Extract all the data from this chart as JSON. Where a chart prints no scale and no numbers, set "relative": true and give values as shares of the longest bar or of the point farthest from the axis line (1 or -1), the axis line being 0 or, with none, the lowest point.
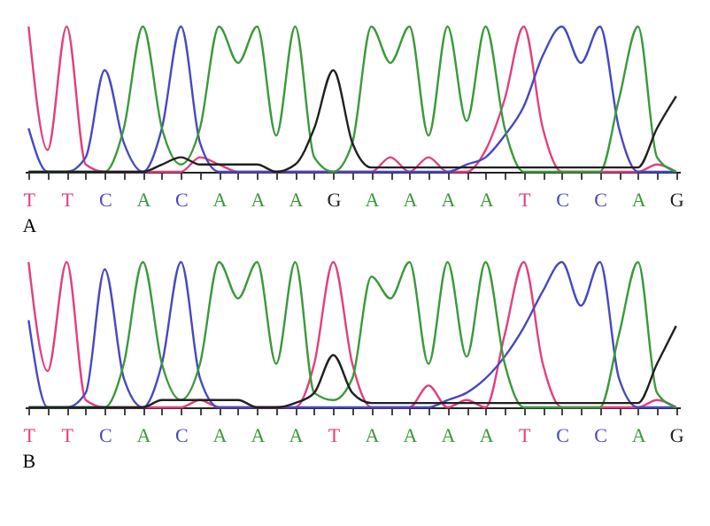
{
  "chart_data": [
    {
      "type": "line",
      "title": "A",
      "relative": true,
      "categories": [
        "T",
        null,
        "T",
        null,
        "C",
        null,
        "A",
        null,
        "C",
        null,
        "A",
        null,
        "A",
        null,
        "A",
        null,
        "G",
        null,
        "A",
        null,
        "A",
        null,
        "A",
        null,
        "A",
        null,
        "T",
        null,
        "C",
        null,
        "C",
        null,
        "A",
        null,
        "G"
      ],
      "series": [
        {
          "color": "#e0407f",
          "values": [
            1,
            0.15,
            1,
            0.05,
            0,
            0,
            0,
            0,
            0,
            0.1,
            0.05,
            0,
            0,
            0,
            0,
            0,
            0,
            0,
            0,
            0.1,
            0,
            0.1,
            0,
            0,
            0.15,
            0.5,
            1,
            0.3,
            0,
            0,
            0,
            0,
            0,
            0.05,
            0
          ]
        },
        {
          "color": "#4848c0",
          "values": [
            0.3,
            0,
            0,
            0.1,
            0.7,
            0.2,
            0,
            0.3,
            1,
            0.2,
            0,
            0,
            0,
            0,
            0,
            0,
            0,
            0,
            0,
            0,
            0,
            0,
            0,
            0.05,
            0.1,
            0.25,
            0.45,
            0.8,
            1,
            0.75,
            1,
            0.3,
            0,
            0,
            0
          ]
        },
        {
          "color": "#3a9a3a",
          "values": [
            0,
            0,
            0,
            0,
            0,
            0.3,
            1,
            0.3,
            0.05,
            0.3,
            1,
            0.75,
            1,
            0.25,
            1,
            0.1,
            0,
            0.2,
            1,
            0.75,
            1,
            0.25,
            1,
            0.35,
            1,
            0.3,
            0,
            0,
            0,
            0,
            0,
            0.5,
            1,
            0.1,
            0
          ]
        },
        {
          "color": "#202020",
          "values": [
            0,
            0,
            0,
            0,
            0,
            0,
            0,
            0.05,
            0.1,
            0.05,
            0.05,
            0.05,
            0.05,
            0,
            0.05,
            0.3,
            0.7,
            0.2,
            0.03,
            0.03,
            0.03,
            0.03,
            0.03,
            0.03,
            0.03,
            0.03,
            0.03,
            0.03,
            0.03,
            0.03,
            0.03,
            0.03,
            0.03,
            0.3,
            0.52
          ]
        }
      ]
    },
    {
      "type": "line",
      "title": "B",
      "relative": true,
      "categories": [
        "T",
        null,
        "T",
        null,
        "C",
        null,
        "A",
        null,
        "C",
        null,
        "A",
        null,
        "A",
        null,
        "A",
        null,
        "T",
        null,
        "A",
        null,
        "A",
        null,
        "A",
        null,
        "A",
        null,
        "T",
        null,
        "C",
        null,
        "C",
        null,
        "A",
        null,
        "G"
      ],
      "series": [
        {
          "color": "#e0407f",
          "values": [
            1,
            0.25,
            1,
            0.05,
            0,
            0,
            0,
            0,
            0,
            0.05,
            0,
            0,
            0,
            0,
            0,
            0.3,
            1,
            0.3,
            0,
            0,
            0,
            0.15,
            0,
            0.05,
            0,
            0.5,
            1,
            0.3,
            0,
            0,
            0,
            0,
            0,
            0.05,
            0
          ]
        },
        {
          "color": "#4848c0",
          "values": [
            0.6,
            0,
            0,
            0.1,
            0.95,
            0.2,
            0,
            0.3,
            1,
            0.2,
            0,
            0,
            0,
            0,
            0,
            0,
            0,
            0,
            0,
            0,
            0,
            0,
            0.05,
            0.1,
            0.2,
            0.35,
            0.55,
            0.8,
            1,
            0.7,
            1,
            0.2,
            0,
            0,
            0
          ]
        },
        {
          "color": "#3a9a3a",
          "values": [
            0,
            0,
            0,
            0,
            0,
            0.3,
            1,
            0.3,
            0.05,
            0.3,
            1,
            0.75,
            1,
            0.3,
            1,
            0.1,
            0.05,
            0.2,
            0.9,
            0.75,
            1,
            0.3,
            1,
            0.35,
            1,
            0.3,
            0,
            0,
            0,
            0,
            0,
            0.5,
            1,
            0.1,
            0
          ]
        },
        {
          "color": "#202020",
          "values": [
            0,
            0,
            0,
            0,
            0,
            0,
            0,
            0.05,
            0.05,
            0.05,
            0.05,
            0.05,
            0,
            0,
            0.03,
            0.1,
            0.36,
            0.1,
            0.03,
            0.03,
            0.03,
            0.03,
            0.03,
            0.03,
            0.03,
            0.03,
            0.03,
            0.03,
            0.03,
            0.03,
            0.03,
            0.03,
            0.03,
            0.3,
            0.56
          ]
        }
      ]
    }
  ]
}
